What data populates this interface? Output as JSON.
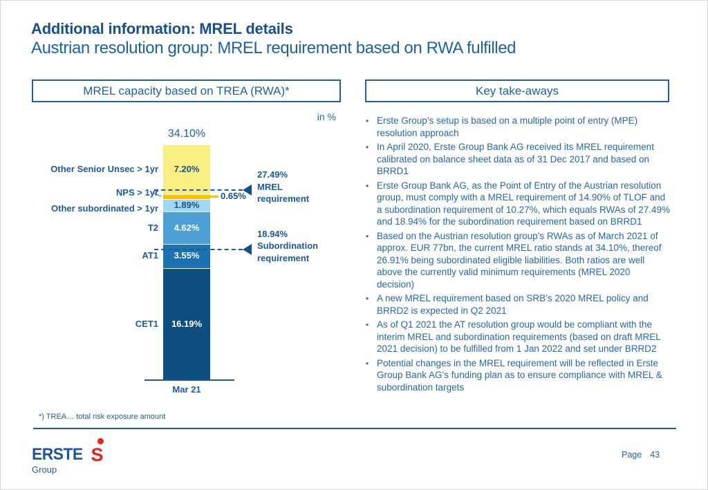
{
  "header": {
    "title": "Additional information: MREL details",
    "subtitle": "Austrian resolution group: MREL requirement based on RWA fulfilled"
  },
  "left_panel": {
    "header": "MREL capacity based on TREA (RWA)*",
    "unit_label": "in %",
    "footnote": "*) TREA… total risk exposure amount"
  },
  "right_panel": {
    "header": "Key take-aways",
    "bullets": [
      "Erste Group’s setup is based on a multiple point of entry (MPE) resolution approach",
      "In April 2020, Erste Group Bank AG received its MREL requirement calibrated on balance sheet data as of 31 Dec 2017 and based on BRRD1",
      "Erste Group Bank AG, as the Point of Entry of the Austrian resolution group, must comply with a MREL requirement of 14.90% of TLOF and a subordination requirement of 10.27%, which equals RWAs of 27.49% and 18.94% for the subordination requirement based on BRRD1",
      "Based on the Austrian resolution group’s RWAs as of March 2021 of approx. EUR 77bn, the current MREL ratio stands at 34.10%, thereof 26.91% being subordinated eligible liabilities. Both ratios are well above the currently valid minimum requirements (MREL 2020 decision)",
      "A new MREL requirement based on SRB’s 2020 MREL policy and BRRD2 is expected in Q2 2021",
      "As of Q1 2021 the AT resolution group would be compliant with the interim MREL and subordination requirements (based on draft MREL 2021 decision) to be fulfilled from 1 Jan 2022 and set under BRRD2",
      "Potential changes in the MREL requirement will be reflected in Erste Group Bank AG’s funding plan as to ensure compliance with MREL & subordination targets"
    ]
  },
  "chart_data": {
    "type": "bar",
    "stacked": true,
    "title": "MREL capacity based on TREA (RWA)*",
    "unit": "in %",
    "categories": [
      "Mar 21"
    ],
    "total": 34.1,
    "total_label": "34.10%",
    "ylim": [
      0,
      34.1
    ],
    "segments": [
      {
        "key": "other_senior_unsec",
        "label": "Other Senior Unsec > 1yr",
        "value": 7.2,
        "value_label": "7.20%",
        "color": "#F9EE82",
        "text_color": "#17518E",
        "value_inside": true
      },
      {
        "key": "nps",
        "label": "NPS > 1yr",
        "value": 0.65,
        "value_label": "0.65%",
        "color": "#FFC000",
        "text_color": "#17518E",
        "value_inside": false
      },
      {
        "key": "other_subordinated",
        "label": "Other subordinated > 1yr",
        "value": 1.89,
        "value_label": "1.89%",
        "color": "#A0D8F4",
        "text_color": "#17518E",
        "value_inside": true
      },
      {
        "key": "t2",
        "label": "T2",
        "value": 4.62,
        "value_label": "4.62%",
        "color": "#4BA1D6",
        "text_color": "#FFFFFF",
        "value_inside": true
      },
      {
        "key": "at1",
        "label": "AT1",
        "value": 3.55,
        "value_label": "3.55%",
        "color": "#1C72B0",
        "text_color": "#FFFFFF",
        "value_inside": true
      },
      {
        "key": "cet1",
        "label": "CET1",
        "value": 16.19,
        "value_label": "16.19%",
        "color": "#0F4E80",
        "text_color": "#FFFFFF",
        "value_inside": true
      }
    ],
    "thresholds": [
      {
        "value": 27.49,
        "value_label": "27.49%",
        "label_lines": [
          "MREL",
          "requirement"
        ]
      },
      {
        "value": 18.94,
        "value_label": "18.94%",
        "label_lines": [
          "Subordination",
          "requirement"
        ]
      }
    ]
  },
  "footer": {
    "logo_brand": "ERSTE",
    "logo_sub": "Group",
    "page_label": "Page",
    "page_number": "43"
  },
  "colors": {
    "accent_blue": "#1E5C99",
    "text_blue": "#2368AC",
    "title_blue": "#17508C",
    "brand_red": "#E5231B",
    "dash_blue": "#1E5C99"
  }
}
